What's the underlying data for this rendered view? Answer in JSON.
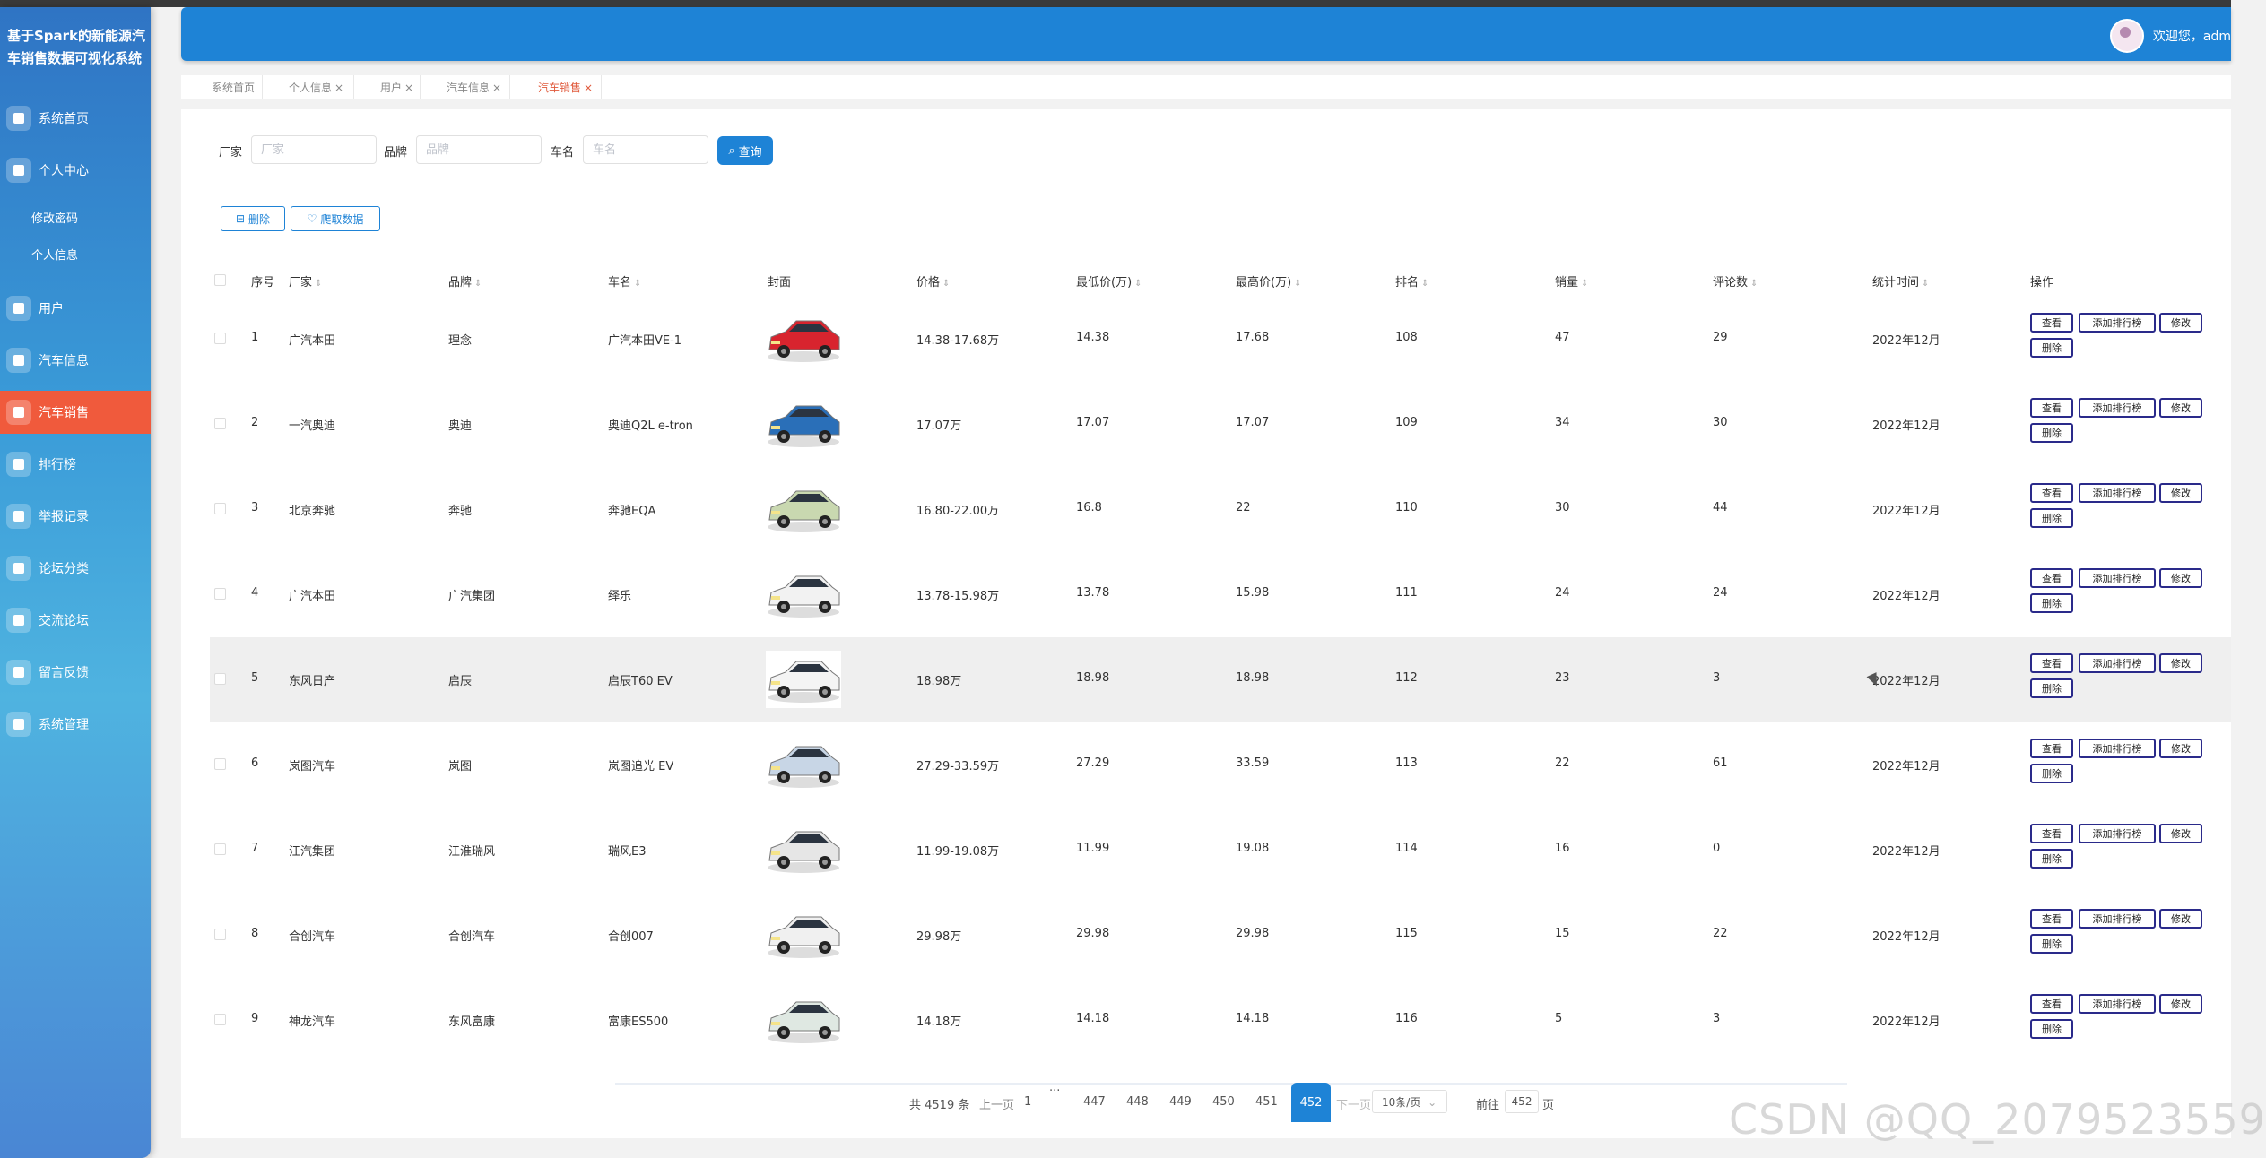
{
  "sidebar": {
    "title": "基于Spark的新能源汽车销售数据可视化系统",
    "items": [
      {
        "label": "系统首页",
        "icon": "home-icon"
      },
      {
        "label": "个人中心",
        "icon": "profile-icon"
      },
      {
        "label": "用户",
        "icon": "user-icon"
      },
      {
        "label": "汽车信息",
        "icon": "car-icon"
      },
      {
        "label": "汽车销售",
        "icon": "grid-icon"
      },
      {
        "label": "排行榜",
        "icon": "grid-icon"
      },
      {
        "label": "举报记录",
        "icon": "report-icon"
      },
      {
        "label": "论坛分类",
        "icon": "grid-icon"
      },
      {
        "label": "交流论坛",
        "icon": "forum-icon"
      },
      {
        "label": "留言反馈",
        "icon": "feedback-icon"
      },
      {
        "label": "系统管理",
        "icon": "grid-icon"
      }
    ],
    "subitems": [
      "修改密码",
      "个人信息"
    ],
    "active_index": 4
  },
  "header": {
    "welcome": "欢迎您，adm"
  },
  "tabs": [
    {
      "label": "系统首页",
      "closable": false
    },
    {
      "label": "个人信息",
      "closable": true
    },
    {
      "label": "用户",
      "closable": true
    },
    {
      "label": "汽车信息",
      "closable": true
    },
    {
      "label": "汽车销售",
      "closable": true,
      "active": true
    }
  ],
  "filters": {
    "manufacturer_label": "厂家",
    "manufacturer_placeholder": "厂家",
    "brand_label": "品牌",
    "brand_placeholder": "品牌",
    "carname_label": "车名",
    "carname_placeholder": "车名",
    "search_button": "查询"
  },
  "actions": {
    "delete": "删除",
    "crawl": "爬取数据"
  },
  "columns": {
    "index": "序号",
    "manufacturer": "厂家",
    "brand": "品牌",
    "name": "车名",
    "cover": "封面",
    "price": "价格",
    "min_price": "最低价(万)",
    "max_price": "最高价(万)",
    "rank": "排名",
    "sales": "销量",
    "comments": "评论数",
    "time": "统计时间",
    "ops": "操作"
  },
  "row_buttons": {
    "view": "查看",
    "add_rank": "添加排行榜",
    "edit": "修改",
    "delete": "删除"
  },
  "rows": [
    {
      "idx": "1",
      "manufacturer": "广汽本田",
      "brand": "理念",
      "name": "广汽本田VE-1",
      "price": "14.38-17.68万",
      "min": "14.38",
      "max": "17.68",
      "rank": "108",
      "sales": "47",
      "comments": "29",
      "time": "2022年12月",
      "car_color": "#d8242e"
    },
    {
      "idx": "2",
      "manufacturer": "一汽奥迪",
      "brand": "奥迪",
      "name": "奥迪Q2L e-tron",
      "price": "17.07万",
      "min": "17.07",
      "max": "17.07",
      "rank": "109",
      "sales": "34",
      "comments": "30",
      "time": "2022年12月",
      "car_color": "#2a6fb8"
    },
    {
      "idx": "3",
      "manufacturer": "北京奔驰",
      "brand": "奔驰",
      "name": "奔驰EQA",
      "price": "16.80-22.00万",
      "min": "16.8",
      "max": "22",
      "rank": "110",
      "sales": "30",
      "comments": "44",
      "time": "2022年12月",
      "car_color": "#c9d8b0"
    },
    {
      "idx": "4",
      "manufacturer": "广汽本田",
      "brand": "广汽集团",
      "name": "绎乐",
      "price": "13.78-15.98万",
      "min": "13.78",
      "max": "15.98",
      "rank": "111",
      "sales": "24",
      "comments": "24",
      "time": "2022年12月",
      "car_color": "#f2f2f2"
    },
    {
      "idx": "5",
      "manufacturer": "东风日产",
      "brand": "启辰",
      "name": "启辰T60 EV",
      "price": "18.98万",
      "min": "18.98",
      "max": "18.98",
      "rank": "112",
      "sales": "23",
      "comments": "3",
      "time": "2022年12月",
      "car_color": "#f4f4f4"
    },
    {
      "idx": "6",
      "manufacturer": "岚图汽车",
      "brand": "岚图",
      "name": "岚图追光 EV",
      "price": "27.29-33.59万",
      "min": "27.29",
      "max": "33.59",
      "rank": "113",
      "sales": "22",
      "comments": "61",
      "time": "2022年12月",
      "car_color": "#c8d6e6"
    },
    {
      "idx": "7",
      "manufacturer": "江汽集团",
      "brand": "江淮瑞风",
      "name": "瑞风E3",
      "price": "11.99-19.08万",
      "min": "11.99",
      "max": "19.08",
      "rank": "114",
      "sales": "16",
      "comments": "0",
      "time": "2022年12月",
      "car_color": "#e6e6e6"
    },
    {
      "idx": "8",
      "manufacturer": "合创汽车",
      "brand": "合创汽车",
      "name": "合创007",
      "price": "29.98万",
      "min": "29.98",
      "max": "29.98",
      "rank": "115",
      "sales": "15",
      "comments": "22",
      "time": "2022年12月",
      "car_color": "#f0f0f0"
    },
    {
      "idx": "9",
      "manufacturer": "神龙汽车",
      "brand": "东风富康",
      "name": "富康ES500",
      "price": "14.18万",
      "min": "14.18",
      "max": "14.18",
      "rank": "116",
      "sales": "5",
      "comments": "3",
      "time": "2022年12月",
      "car_color": "#dfe8e2"
    }
  ],
  "pagination": {
    "total": "共 4519 条",
    "prev": "上一页",
    "first": "1",
    "ellipsis": "···",
    "pages": [
      "447",
      "448",
      "449",
      "450",
      "451"
    ],
    "current": "452",
    "next": "下一页",
    "page_size": "10条/页",
    "goto_label": "前往",
    "goto_value": "452",
    "page_suffix": "页"
  },
  "watermark": "CSDN @QQ_2079523559"
}
